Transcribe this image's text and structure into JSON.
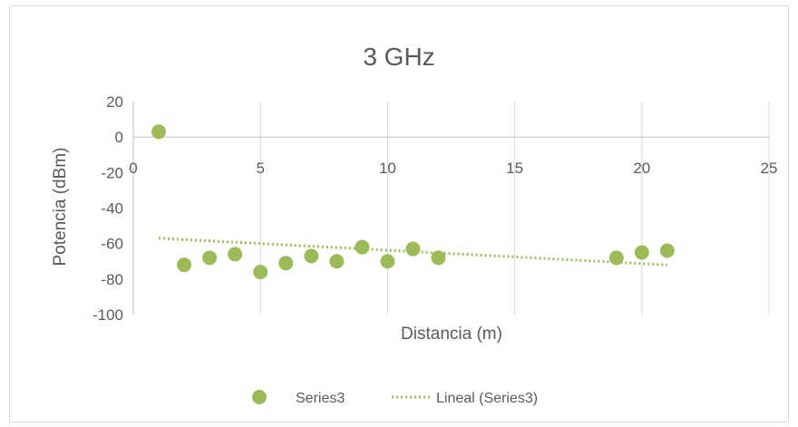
{
  "chart_data": {
    "type": "scatter",
    "title": "3 GHz",
    "xlabel": "Distancia (m)",
    "ylabel": "Potencia (dBm)",
    "xlim": [
      0,
      25
    ],
    "ylim": [
      -100,
      20
    ],
    "x_ticks": [
      "0",
      "5",
      "10",
      "15",
      "20",
      "25"
    ],
    "y_ticks": [
      "20",
      "0",
      "-20",
      "-40",
      "-60",
      "-80",
      "-100"
    ],
    "grid": "vertical",
    "legend_position": "bottom",
    "series": [
      {
        "name": "Series3",
        "color": "#9bbb59",
        "points": [
          [
            1,
            3
          ],
          [
            2,
            -72
          ],
          [
            3,
            -68
          ],
          [
            4,
            -66
          ],
          [
            5,
            -76
          ],
          [
            6,
            -71
          ],
          [
            7,
            -67
          ],
          [
            8,
            -70
          ],
          [
            9,
            -62
          ],
          [
            10,
            -70
          ],
          [
            11,
            -63
          ],
          [
            12,
            -68
          ],
          [
            19,
            -68
          ],
          [
            20,
            -65
          ],
          [
            21,
            -64
          ]
        ]
      }
    ],
    "trendline": {
      "name": "Lineal (Series3)",
      "type": "linear",
      "color": "#9bbb59",
      "x_range": [
        1,
        21
      ],
      "y_values": [
        -57,
        -72
      ]
    }
  }
}
